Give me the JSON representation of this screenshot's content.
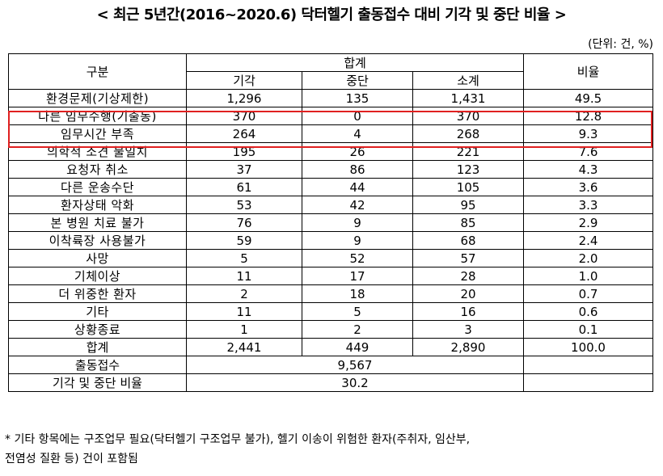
{
  "title": "< 최근 5년간(2016~2020.6) 닥터헬기 출동접수 대비 기각 및 중단 비율 >",
  "unit": "(단위: 건, %)",
  "header": {
    "category": "구분",
    "total_group": "합계",
    "rejected": "기각",
    "stopped": "중단",
    "subtotal": "소계",
    "ratio": "비율"
  },
  "rows": [
    {
      "label": "환경문제(기상제한)",
      "rejected": "1,296",
      "stopped": "135",
      "subtotal": "1,431",
      "ratio": "49.5"
    },
    {
      "label": "다른 임무수행(기출동)",
      "rejected": "370",
      "stopped": "0",
      "subtotal": "370",
      "ratio": "12.8"
    },
    {
      "label": "임무시간 부족",
      "rejected": "264",
      "stopped": "4",
      "subtotal": "268",
      "ratio": "9.3"
    },
    {
      "label": "의학적 소견 불일치",
      "rejected": "195",
      "stopped": "26",
      "subtotal": "221",
      "ratio": "7.6"
    },
    {
      "label": "요청자 취소",
      "rejected": "37",
      "stopped": "86",
      "subtotal": "123",
      "ratio": "4.3"
    },
    {
      "label": "다른 운송수단",
      "rejected": "61",
      "stopped": "44",
      "subtotal": "105",
      "ratio": "3.6"
    },
    {
      "label": "환자상태 악화",
      "rejected": "53",
      "stopped": "42",
      "subtotal": "95",
      "ratio": "3.3"
    },
    {
      "label": "본 병원 치료 불가",
      "rejected": "76",
      "stopped": "9",
      "subtotal": "85",
      "ratio": "2.9"
    },
    {
      "label": "이착륙장 사용불가",
      "rejected": "59",
      "stopped": "9",
      "subtotal": "68",
      "ratio": "2.4"
    },
    {
      "label": "사망",
      "rejected": "5",
      "stopped": "52",
      "subtotal": "57",
      "ratio": "2.0"
    },
    {
      "label": "기체이상",
      "rejected": "11",
      "stopped": "17",
      "subtotal": "28",
      "ratio": "1.0"
    },
    {
      "label": "더 위중한 환자",
      "rejected": "2",
      "stopped": "18",
      "subtotal": "20",
      "ratio": "0.7"
    },
    {
      "label": "기타",
      "rejected": "11",
      "stopped": "5",
      "subtotal": "16",
      "ratio": "0.6"
    },
    {
      "label": "상황종료",
      "rejected": "1",
      "stopped": "2",
      "subtotal": "3",
      "ratio": "0.1"
    }
  ],
  "total_row": {
    "label": "합계",
    "rejected": "2,441",
    "stopped": "449",
    "subtotal": "2,890",
    "ratio": "100.0"
  },
  "dispatch_row": {
    "label": "출동접수",
    "value": "9,567"
  },
  "rate_row": {
    "label": "기각 및 중단 비율",
    "value": "30.2"
  },
  "footnote": {
    "line1": "* 기타 항목에는 구조업무 필요(닥터헬기 구조업무 불가), 헬기 이송이 위험한 환자(주취자, 임산부,",
    "line2": "전염성 질환 등) 건이 포함됨"
  },
  "colors": {
    "highlight": "#e02020"
  }
}
